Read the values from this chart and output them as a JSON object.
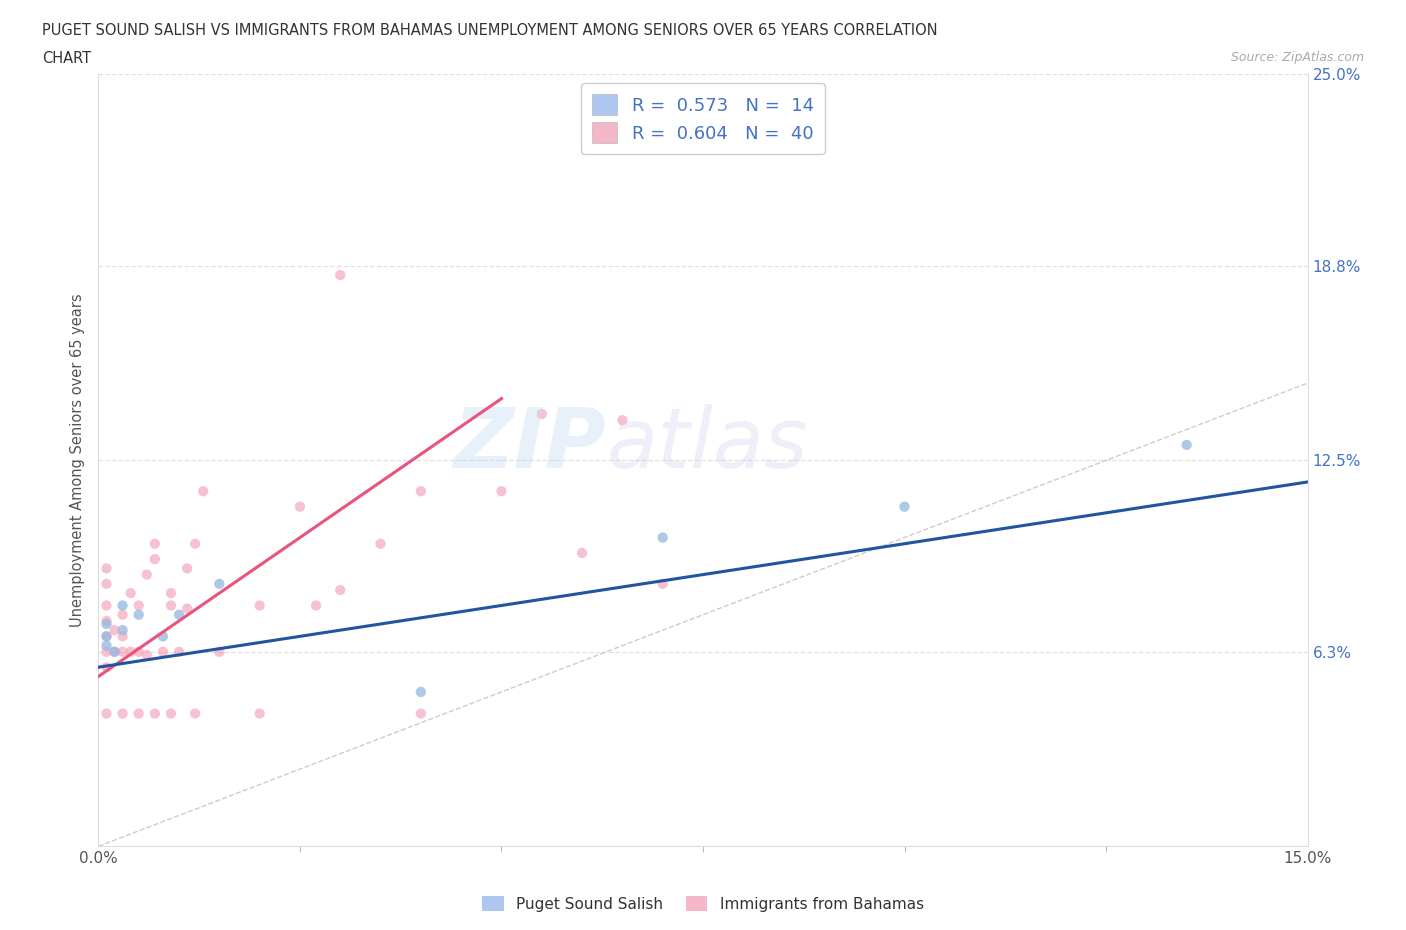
{
  "title_line1": "PUGET SOUND SALISH VS IMMIGRANTS FROM BAHAMAS UNEMPLOYMENT AMONG SENIORS OVER 65 YEARS CORRELATION",
  "title_line2": "CHART",
  "source_text": "Source: ZipAtlas.com",
  "ylabel": "Unemployment Among Seniors over 65 years",
  "xlim": [
    0.0,
    0.15
  ],
  "ylim": [
    0.0,
    0.25
  ],
  "xtick_positions": [
    0.0,
    0.15
  ],
  "xtick_labels": [
    "0.0%",
    "15.0%"
  ],
  "ytick_vals": [
    0.063,
    0.125,
    0.188,
    0.25
  ],
  "ytick_labels": [
    "6.3%",
    "12.5%",
    "18.8%",
    "25.0%"
  ],
  "legend_label_blue": "R =  0.573   N =  14",
  "legend_label_pink": "R =  0.604   N =  40",
  "blue_scatter_x": [
    0.001,
    0.001,
    0.001,
    0.002,
    0.003,
    0.003,
    0.005,
    0.008,
    0.01,
    0.015,
    0.04,
    0.07,
    0.1,
    0.135
  ],
  "blue_scatter_y": [
    0.065,
    0.068,
    0.072,
    0.063,
    0.07,
    0.078,
    0.075,
    0.068,
    0.075,
    0.085,
    0.05,
    0.1,
    0.11,
    0.13
  ],
  "pink_scatter_x": [
    0.001,
    0.001,
    0.001,
    0.001,
    0.001,
    0.001,
    0.001,
    0.002,
    0.002,
    0.003,
    0.003,
    0.003,
    0.004,
    0.004,
    0.005,
    0.005,
    0.006,
    0.006,
    0.007,
    0.007,
    0.008,
    0.009,
    0.009,
    0.01,
    0.011,
    0.011,
    0.012,
    0.013,
    0.015,
    0.02,
    0.025,
    0.027,
    0.03,
    0.035,
    0.04,
    0.05,
    0.055,
    0.06,
    0.065,
    0.07
  ],
  "pink_scatter_y": [
    0.058,
    0.063,
    0.068,
    0.073,
    0.078,
    0.085,
    0.09,
    0.063,
    0.07,
    0.063,
    0.068,
    0.075,
    0.063,
    0.082,
    0.063,
    0.078,
    0.062,
    0.088,
    0.093,
    0.098,
    0.063,
    0.078,
    0.082,
    0.063,
    0.077,
    0.09,
    0.098,
    0.115,
    0.063,
    0.078,
    0.11,
    0.078,
    0.083,
    0.098,
    0.115,
    0.115,
    0.14,
    0.095,
    0.138,
    0.085
  ],
  "pink_scatter_outlier_x": [
    0.03
  ],
  "pink_scatter_outlier_y": [
    0.185
  ],
  "pink_scatter_low_x": [
    0.001,
    0.003,
    0.005,
    0.007,
    0.009,
    0.012,
    0.02,
    0.04
  ],
  "pink_scatter_low_y": [
    0.043,
    0.043,
    0.043,
    0.043,
    0.043,
    0.043,
    0.043,
    0.043
  ],
  "blue_line_x": [
    0.0,
    0.15
  ],
  "blue_line_y": [
    0.058,
    0.118
  ],
  "pink_line_x": [
    0.0,
    0.05
  ],
  "pink_line_y": [
    0.055,
    0.145
  ],
  "diagonal_line_x": [
    0.0,
    0.15
  ],
  "diagonal_line_y": [
    0.0,
    0.15
  ],
  "background_color": "#ffffff",
  "scatter_size": 55,
  "scatter_alpha": 0.65,
  "blue_dot_color": "#93b8e0",
  "pink_dot_color": "#f4a0b8",
  "blue_line_color": "#2155a0",
  "pink_line_color": "#e8547a",
  "diagonal_color": "#cccccc",
  "grid_color": "#e0e0e0"
}
